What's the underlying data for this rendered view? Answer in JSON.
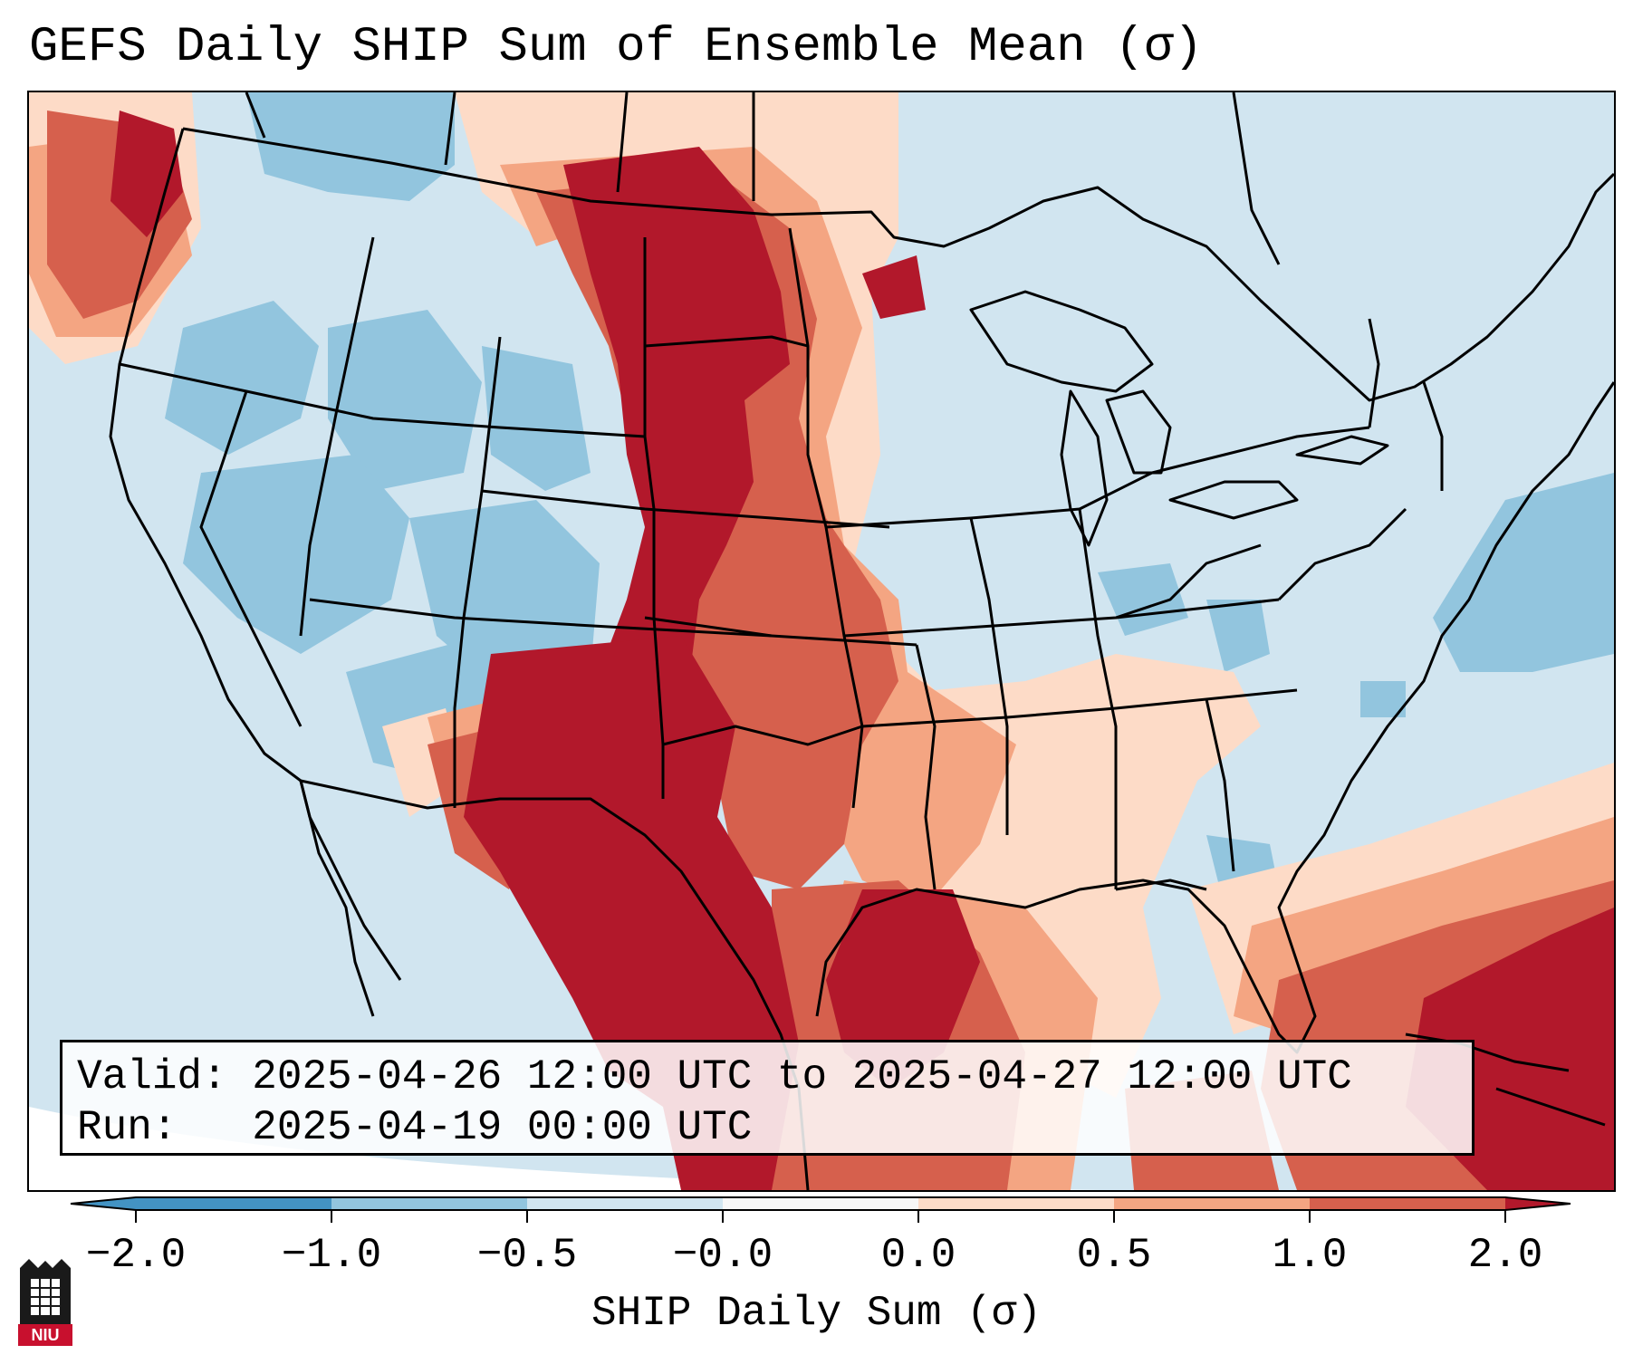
{
  "title": "GEFS Daily SHIP Sum of Ensemble Mean (σ)",
  "valid_line": "Valid: 2025-04-26 12:00 UTC to 2025-04-27 12:00 UTC",
  "run_line": "Run:   2025-04-19 00:00 UTC",
  "colorbar": {
    "ticks": [
      "−2.0",
      "−1.0",
      "−0.5",
      "−0.0",
      "0.0",
      "0.5",
      "1.0",
      "2.0"
    ],
    "label": "SHIP Daily Sum (σ)",
    "colors": [
      "#4393c3",
      "#92c5de",
      "#d1e5f0",
      "#f7f7f7",
      "#fddbc7",
      "#f4a582",
      "#d6604d",
      "#b2182b"
    ]
  },
  "logo_text": "NIU",
  "colors": {
    "strong_negative": "#92c5de",
    "weak_negative": "#d1e5f0",
    "weak_positive": "#fddbc7",
    "moderate_positive": "#f4a582",
    "high_positive": "#d6604d",
    "extreme_positive": "#b2182b"
  }
}
